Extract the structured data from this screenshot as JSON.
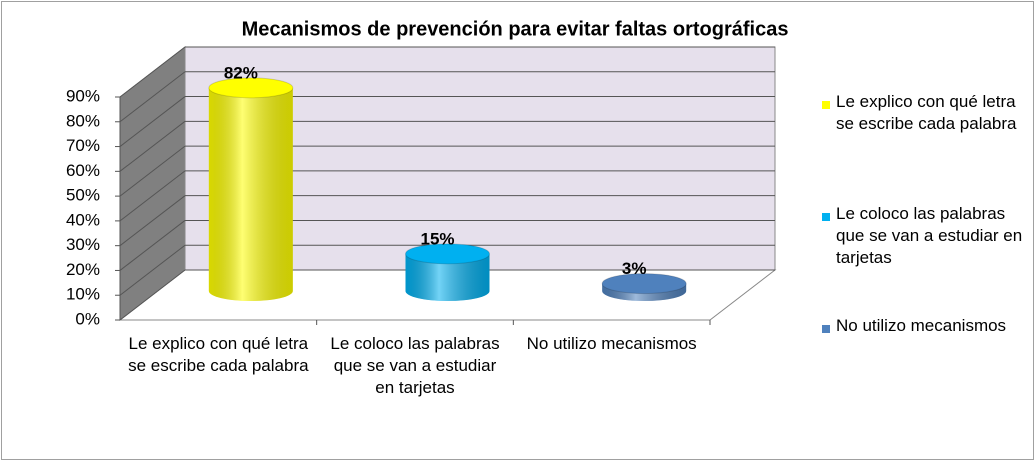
{
  "chart_data": {
    "type": "bar3d",
    "title": "Mecanismos de prevención para evitar faltas ortográficas",
    "categories": [
      "Le explico con qué letra se escribe cada palabra",
      "Le coloco las palabras que se van a estudiar en tarjetas",
      "No utilizo mecanismos"
    ],
    "values": [
      82,
      15,
      3
    ],
    "value_labels": [
      "82%",
      "15%",
      "3%"
    ],
    "colors": [
      "#ffff00",
      "#00b0f0",
      "#4f81bd"
    ],
    "ylim": [
      0,
      90
    ],
    "yticks": [
      {
        "value": 0,
        "label": "0%"
      },
      {
        "value": 10,
        "label": "10%"
      },
      {
        "value": 20,
        "label": "20%"
      },
      {
        "value": 30,
        "label": "30%"
      },
      {
        "value": 40,
        "label": "40%"
      },
      {
        "value": 50,
        "label": "50%"
      },
      {
        "value": 60,
        "label": "60%"
      },
      {
        "value": 70,
        "label": "70%"
      },
      {
        "value": 80,
        "label": "80%"
      },
      {
        "value": 90,
        "label": "90%"
      }
    ],
    "grid": true,
    "legend": "right"
  }
}
